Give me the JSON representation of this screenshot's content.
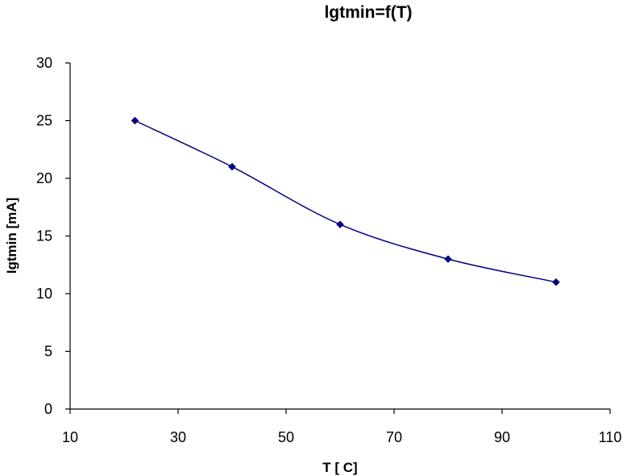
{
  "chart_data": {
    "type": "line",
    "title": "lgtmin=f(T)",
    "xlabel": "T [  C]",
    "ylabel": "Igtmin [mA]",
    "xlim": [
      10,
      110
    ],
    "ylim": [
      0,
      30
    ],
    "x_ticks": [
      10,
      30,
      50,
      70,
      90,
      110
    ],
    "y_ticks": [
      0,
      5,
      10,
      15,
      20,
      25,
      30
    ],
    "grid": false,
    "legend": "none",
    "smoothed": true,
    "marker": "diamond",
    "series": [
      {
        "color": "#000080",
        "x": [
          22,
          40,
          60,
          80,
          100
        ],
        "y": [
          25,
          21,
          16,
          13,
          11
        ]
      }
    ]
  }
}
